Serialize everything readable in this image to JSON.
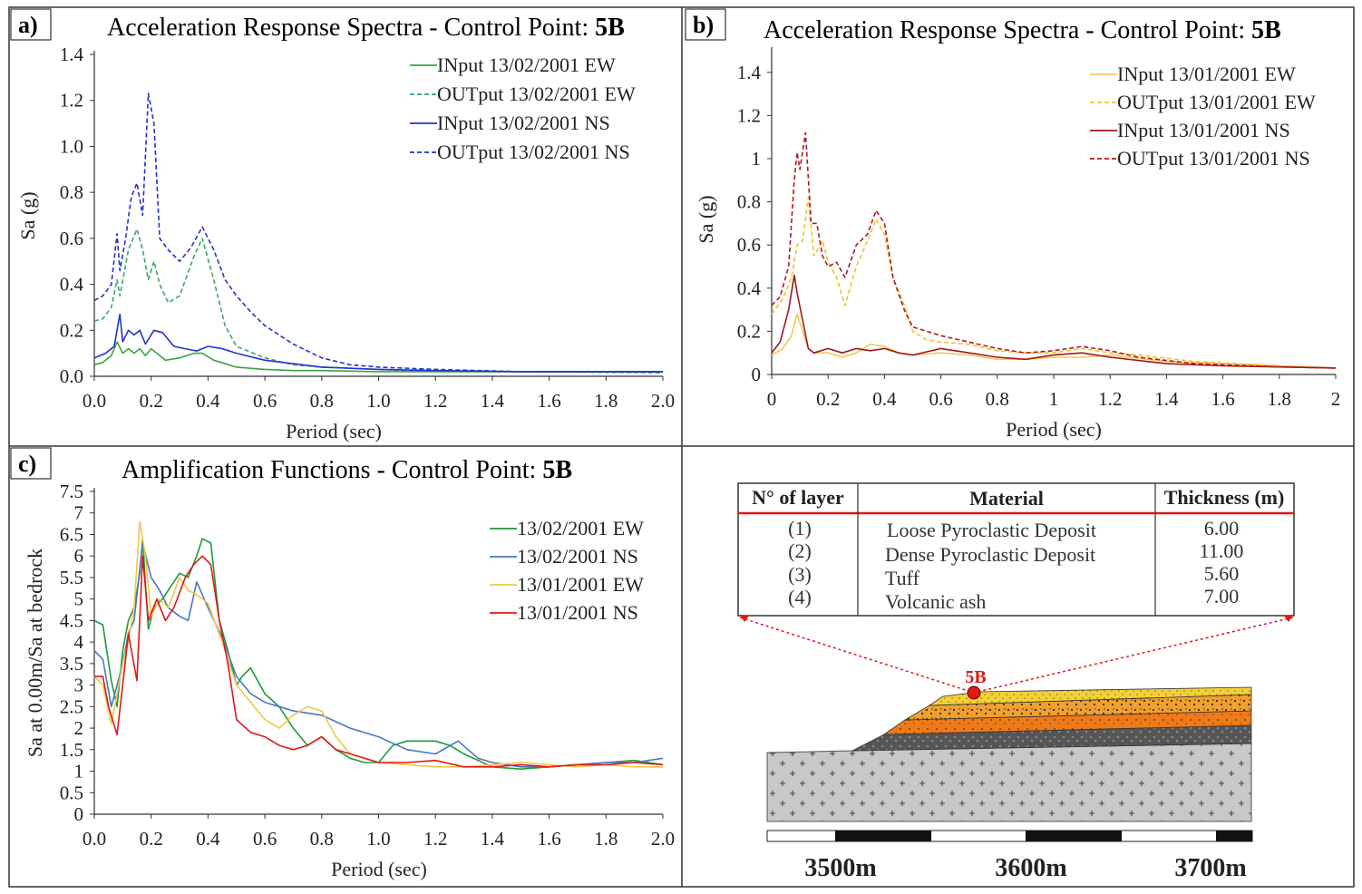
{
  "chart_data": [
    {
      "id": "a",
      "panel_label": "a)",
      "type": "line",
      "title": "Acceleration Response Spectra - Control Point: ",
      "title_bold": "5B",
      "xlabel": "Period (sec)",
      "ylabel": "Sa (g)",
      "xlim": [
        0,
        2.0
      ],
      "ylim": [
        0,
        1.4
      ],
      "xticks": [
        "0.0",
        "0.2",
        "0.4",
        "0.6",
        "0.8",
        "1.0",
        "1.2",
        "1.4",
        "1.6",
        "1.8",
        "2.0"
      ],
      "yticks": [
        "0.0",
        "0.2",
        "0.4",
        "0.6",
        "0.8",
        "1.0",
        "1.2",
        "1.4"
      ],
      "legend_position": "top-right",
      "series": [
        {
          "name": "INput 13/02/2001 EW",
          "color": "#3aa63a",
          "dash": "solid",
          "x": [
            0,
            0.03,
            0.06,
            0.08,
            0.1,
            0.12,
            0.14,
            0.16,
            0.18,
            0.2,
            0.22,
            0.25,
            0.3,
            0.35,
            0.38,
            0.42,
            0.5,
            0.6,
            0.7,
            0.8,
            1.0,
            1.2,
            1.5,
            2.0
          ],
          "y": [
            0.05,
            0.06,
            0.09,
            0.15,
            0.1,
            0.12,
            0.1,
            0.12,
            0.09,
            0.12,
            0.1,
            0.07,
            0.08,
            0.1,
            0.1,
            0.07,
            0.04,
            0.03,
            0.025,
            0.025,
            0.02,
            0.02,
            0.02,
            0.02
          ]
        },
        {
          "name": "OUTput 13/02/2001 EW",
          "color": "#3aa66a",
          "dash": "5,3",
          "x": [
            0,
            0.03,
            0.06,
            0.08,
            0.09,
            0.12,
            0.15,
            0.17,
            0.19,
            0.21,
            0.23,
            0.26,
            0.3,
            0.35,
            0.38,
            0.42,
            0.46,
            0.5,
            0.6,
            0.7,
            0.8,
            1.0,
            1.2,
            1.5,
            2.0
          ],
          "y": [
            0.24,
            0.25,
            0.3,
            0.42,
            0.35,
            0.55,
            0.64,
            0.55,
            0.42,
            0.5,
            0.4,
            0.32,
            0.35,
            0.52,
            0.6,
            0.42,
            0.22,
            0.13,
            0.08,
            0.05,
            0.04,
            0.03,
            0.02,
            0.02,
            0.015
          ]
        },
        {
          "name": "INput 13/02/2001 NS",
          "color": "#2233cc",
          "dash": "solid",
          "x": [
            0,
            0.04,
            0.07,
            0.09,
            0.1,
            0.12,
            0.14,
            0.16,
            0.18,
            0.21,
            0.24,
            0.28,
            0.32,
            0.36,
            0.4,
            0.45,
            0.5,
            0.6,
            0.8,
            1.0,
            1.2,
            1.5,
            2.0
          ],
          "y": [
            0.08,
            0.1,
            0.13,
            0.27,
            0.15,
            0.2,
            0.18,
            0.2,
            0.14,
            0.2,
            0.19,
            0.13,
            0.12,
            0.11,
            0.13,
            0.12,
            0.1,
            0.07,
            0.04,
            0.03,
            0.025,
            0.02,
            0.02
          ]
        },
        {
          "name": "OUTput 13/02/2001 NS",
          "color": "#2233cc",
          "dash": "5,3",
          "x": [
            0,
            0.03,
            0.06,
            0.08,
            0.09,
            0.11,
            0.13,
            0.15,
            0.17,
            0.19,
            0.21,
            0.23,
            0.26,
            0.3,
            0.34,
            0.38,
            0.42,
            0.46,
            0.5,
            0.55,
            0.6,
            0.65,
            0.7,
            0.8,
            0.9,
            1.0,
            1.2,
            1.5,
            2.0
          ],
          "y": [
            0.33,
            0.35,
            0.4,
            0.62,
            0.46,
            0.6,
            0.78,
            0.84,
            0.7,
            1.23,
            1.1,
            0.6,
            0.55,
            0.5,
            0.56,
            0.65,
            0.55,
            0.42,
            0.35,
            0.28,
            0.22,
            0.18,
            0.14,
            0.08,
            0.05,
            0.04,
            0.03,
            0.02,
            0.02
          ]
        }
      ]
    },
    {
      "id": "b",
      "panel_label": "b)",
      "type": "line",
      "title": "Acceleration Response Spectra - Control Point: ",
      "title_bold": "5B",
      "xlabel": "Period (sec)",
      "ylabel": "Sa (g)",
      "xlim": [
        0,
        2
      ],
      "ylim": [
        0,
        1.5
      ],
      "xticks": [
        "0",
        "0.2",
        "0.4",
        "0.6",
        "0.8",
        "1",
        "1.2",
        "1.4",
        "1.6",
        "1.8",
        "2"
      ],
      "yticks": [
        "0",
        "0.2",
        "0.4",
        "0.6",
        "0.8",
        "1",
        "1.2",
        "1.4"
      ],
      "legend_position": "top-right",
      "series": [
        {
          "name": "INput 13/01/2001 EW",
          "color": "#f2c860",
          "dash": "solid",
          "x": [
            0,
            0.04,
            0.07,
            0.09,
            0.11,
            0.13,
            0.15,
            0.2,
            0.25,
            0.3,
            0.35,
            0.4,
            0.45,
            0.5,
            0.6,
            0.7,
            0.8,
            0.9,
            1.0,
            1.1,
            1.2,
            1.4,
            1.6,
            1.8,
            2.0
          ],
          "y": [
            0.09,
            0.12,
            0.18,
            0.28,
            0.2,
            0.12,
            0.1,
            0.1,
            0.08,
            0.1,
            0.14,
            0.13,
            0.1,
            0.09,
            0.1,
            0.09,
            0.07,
            0.07,
            0.08,
            0.08,
            0.09,
            0.06,
            0.05,
            0.04,
            0.03
          ]
        },
        {
          "name": "OUTput 13/01/2001 EW",
          "color": "#f2c030",
          "dash": "5,3",
          "x": [
            0,
            0.04,
            0.07,
            0.09,
            0.11,
            0.13,
            0.15,
            0.18,
            0.2,
            0.23,
            0.26,
            0.3,
            0.34,
            0.37,
            0.4,
            0.43,
            0.47,
            0.5,
            0.55,
            0.6,
            0.7,
            0.8,
            0.9,
            1.0,
            1.1,
            1.2,
            1.3,
            1.5,
            1.8,
            2.0
          ],
          "y": [
            0.28,
            0.35,
            0.45,
            0.6,
            0.62,
            0.82,
            0.55,
            0.62,
            0.52,
            0.45,
            0.32,
            0.5,
            0.62,
            0.72,
            0.65,
            0.45,
            0.32,
            0.2,
            0.16,
            0.15,
            0.14,
            0.11,
            0.1,
            0.1,
            0.12,
            0.1,
            0.09,
            0.06,
            0.04,
            0.03
          ]
        },
        {
          "name": "INput 13/01/2001 NS",
          "color": "#a01818",
          "dash": "solid",
          "x": [
            0,
            0.03,
            0.06,
            0.08,
            0.09,
            0.11,
            0.13,
            0.15,
            0.2,
            0.25,
            0.3,
            0.35,
            0.4,
            0.45,
            0.5,
            0.6,
            0.7,
            0.8,
            0.9,
            1.0,
            1.1,
            1.2,
            1.4,
            1.6,
            1.8,
            2.0
          ],
          "y": [
            0.1,
            0.15,
            0.3,
            0.46,
            0.38,
            0.25,
            0.12,
            0.1,
            0.12,
            0.1,
            0.12,
            0.11,
            0.12,
            0.1,
            0.09,
            0.12,
            0.1,
            0.08,
            0.07,
            0.09,
            0.1,
            0.08,
            0.05,
            0.04,
            0.035,
            0.03
          ]
        },
        {
          "name": "OUTput 13/01/2001 NS",
          "color": "#b01a1a",
          "dash": "5,3",
          "x": [
            0,
            0.03,
            0.06,
            0.08,
            0.09,
            0.1,
            0.12,
            0.14,
            0.16,
            0.18,
            0.2,
            0.23,
            0.26,
            0.3,
            0.34,
            0.37,
            0.4,
            0.43,
            0.47,
            0.5,
            0.55,
            0.6,
            0.7,
            0.8,
            0.9,
            1.0,
            1.1,
            1.2,
            1.3,
            1.5,
            1.8,
            2.0
          ],
          "y": [
            0.32,
            0.36,
            0.5,
            0.9,
            1.03,
            0.95,
            1.12,
            0.7,
            0.7,
            0.55,
            0.5,
            0.52,
            0.45,
            0.6,
            0.65,
            0.76,
            0.7,
            0.45,
            0.3,
            0.22,
            0.2,
            0.18,
            0.15,
            0.12,
            0.1,
            0.11,
            0.13,
            0.11,
            0.08,
            0.05,
            0.035,
            0.03
          ]
        }
      ]
    },
    {
      "id": "c",
      "panel_label": "c)",
      "type": "line",
      "title": "Amplification Functions - Control Point: ",
      "title_bold": "5B",
      "xlabel": "Period (sec)",
      "ylabel": "Sa at 0.00m/Sa at bedrock",
      "xlim": [
        0,
        2.0
      ],
      "ylim": [
        0,
        7.5
      ],
      "xticks": [
        "0.0",
        "0.2",
        "0.4",
        "0.6",
        "0.8",
        "1.0",
        "1.2",
        "1.4",
        "1.6",
        "1.8",
        "2.0"
      ],
      "yticks": [
        "0",
        "0.5",
        "1",
        "1.5",
        "2",
        "2.5",
        "3",
        "3.5",
        "4",
        "4.5",
        "5",
        "5.5",
        "6",
        "6.5",
        "7",
        "7.5"
      ],
      "legend_position": "top-right",
      "series": [
        {
          "name": "13/02/2001 EW",
          "color": "#1e9a3a",
          "dash": "solid",
          "x": [
            0,
            0.03,
            0.06,
            0.08,
            0.1,
            0.12,
            0.14,
            0.16,
            0.17,
            0.19,
            0.21,
            0.24,
            0.27,
            0.3,
            0.33,
            0.36,
            0.38,
            0.41,
            0.44,
            0.47,
            0.5,
            0.52,
            0.55,
            0.6,
            0.65,
            0.7,
            0.75,
            0.8,
            0.85,
            0.9,
            0.95,
            1.0,
            1.05,
            1.1,
            1.15,
            1.2,
            1.25,
            1.3,
            1.4,
            1.5,
            1.6,
            1.7,
            1.8,
            1.9,
            2.0
          ],
          "y": [
            4.5,
            4.4,
            3.1,
            2.5,
            3.8,
            4.5,
            4.8,
            5.6,
            6.4,
            4.3,
            4.8,
            5.0,
            5.3,
            5.6,
            5.5,
            6.0,
            6.4,
            6.3,
            4.5,
            3.8,
            3.0,
            3.2,
            3.4,
            2.8,
            2.5,
            2.0,
            1.6,
            1.8,
            1.5,
            1.3,
            1.2,
            1.2,
            1.6,
            1.7,
            1.7,
            1.7,
            1.6,
            1.4,
            1.1,
            1.05,
            1.1,
            1.15,
            1.2,
            1.25,
            1.15
          ]
        },
        {
          "name": "13/02/2001 NS",
          "color": "#4a78c0",
          "dash": "solid",
          "x": [
            0,
            0.03,
            0.06,
            0.08,
            0.1,
            0.12,
            0.14,
            0.17,
            0.2,
            0.23,
            0.26,
            0.3,
            0.33,
            0.36,
            0.4,
            0.45,
            0.5,
            0.55,
            0.6,
            0.65,
            0.7,
            0.8,
            0.9,
            1.0,
            1.1,
            1.2,
            1.28,
            1.35,
            1.4,
            1.5,
            1.6,
            1.7,
            1.8,
            1.9,
            2.0
          ],
          "y": [
            3.8,
            3.6,
            2.5,
            3.0,
            3.5,
            4.2,
            4.5,
            6.3,
            5.5,
            5.2,
            4.8,
            4.6,
            4.5,
            5.4,
            4.8,
            4.1,
            3.2,
            2.8,
            2.6,
            2.5,
            2.4,
            2.3,
            2.0,
            1.8,
            1.5,
            1.4,
            1.7,
            1.3,
            1.2,
            1.1,
            1.1,
            1.15,
            1.2,
            1.2,
            1.3
          ]
        },
        {
          "name": "13/01/2001 EW",
          "color": "#f0c84a",
          "dash": "solid",
          "x": [
            0,
            0.03,
            0.06,
            0.08,
            0.1,
            0.12,
            0.14,
            0.16,
            0.18,
            0.2,
            0.23,
            0.26,
            0.3,
            0.33,
            0.36,
            0.4,
            0.45,
            0.5,
            0.55,
            0.6,
            0.65,
            0.7,
            0.75,
            0.8,
            0.85,
            0.9,
            1.0,
            1.1,
            1.2,
            1.3,
            1.4,
            1.5,
            1.6,
            1.7,
            1.8,
            1.9,
            2.0
          ],
          "y": [
            3.2,
            3.0,
            2.1,
            2.8,
            3.5,
            4.0,
            4.8,
            6.8,
            6.0,
            4.6,
            5.0,
            4.8,
            5.5,
            5.2,
            5.1,
            4.9,
            4.0,
            3.0,
            2.6,
            2.2,
            2.0,
            2.3,
            2.5,
            2.4,
            1.8,
            1.4,
            1.2,
            1.15,
            1.1,
            1.1,
            1.15,
            1.2,
            1.15,
            1.1,
            1.15,
            1.1,
            1.1
          ]
        },
        {
          "name": "13/01/2001 NS",
          "color": "#e01818",
          "dash": "solid",
          "x": [
            0,
            0.03,
            0.05,
            0.08,
            0.1,
            0.12,
            0.15,
            0.17,
            0.19,
            0.22,
            0.25,
            0.28,
            0.32,
            0.35,
            0.38,
            0.41,
            0.44,
            0.47,
            0.5,
            0.55,
            0.6,
            0.65,
            0.7,
            0.75,
            0.8,
            0.85,
            0.9,
            1.0,
            1.1,
            1.2,
            1.3,
            1.4,
            1.5,
            1.6,
            1.7,
            1.8,
            1.9,
            2.0
          ],
          "y": [
            3.2,
            3.2,
            2.5,
            1.85,
            3.0,
            4.2,
            3.1,
            6.0,
            4.5,
            5.0,
            4.5,
            4.8,
            5.5,
            5.8,
            6.0,
            5.8,
            4.5,
            3.5,
            2.2,
            1.9,
            1.8,
            1.6,
            1.5,
            1.6,
            1.8,
            1.5,
            1.4,
            1.2,
            1.2,
            1.25,
            1.1,
            1.1,
            1.15,
            1.1,
            1.15,
            1.15,
            1.2,
            1.15
          ]
        }
      ]
    }
  ],
  "panel_d": {
    "site_label": "5B",
    "table": {
      "headers": [
        "N° of layer",
        "Material",
        "Thickness (m)"
      ],
      "rows": [
        {
          "layer": "(1)",
          "material": "Loose Pyroclastic Deposit",
          "thickness": "6.00"
        },
        {
          "layer": "(2)",
          "material": "Dense Pyroclastic Deposit",
          "thickness": "11.00"
        },
        {
          "layer": "(3)",
          "material": "Tuff",
          "thickness": "5.60"
        },
        {
          "layer": "(4)",
          "material": "Volcanic ash",
          "thickness": "7.00"
        }
      ]
    },
    "scale_labels": [
      "3500m",
      "3600m",
      "3700m"
    ],
    "colors": {
      "loose_pyroclastic": "#f2d03a",
      "dense_pyroclastic": "#f0a030",
      "tuff": "#ee7a1a",
      "volcanic_ash": "#555555",
      "bedrock": "#c8c8c8",
      "marker": "#e01818"
    }
  }
}
